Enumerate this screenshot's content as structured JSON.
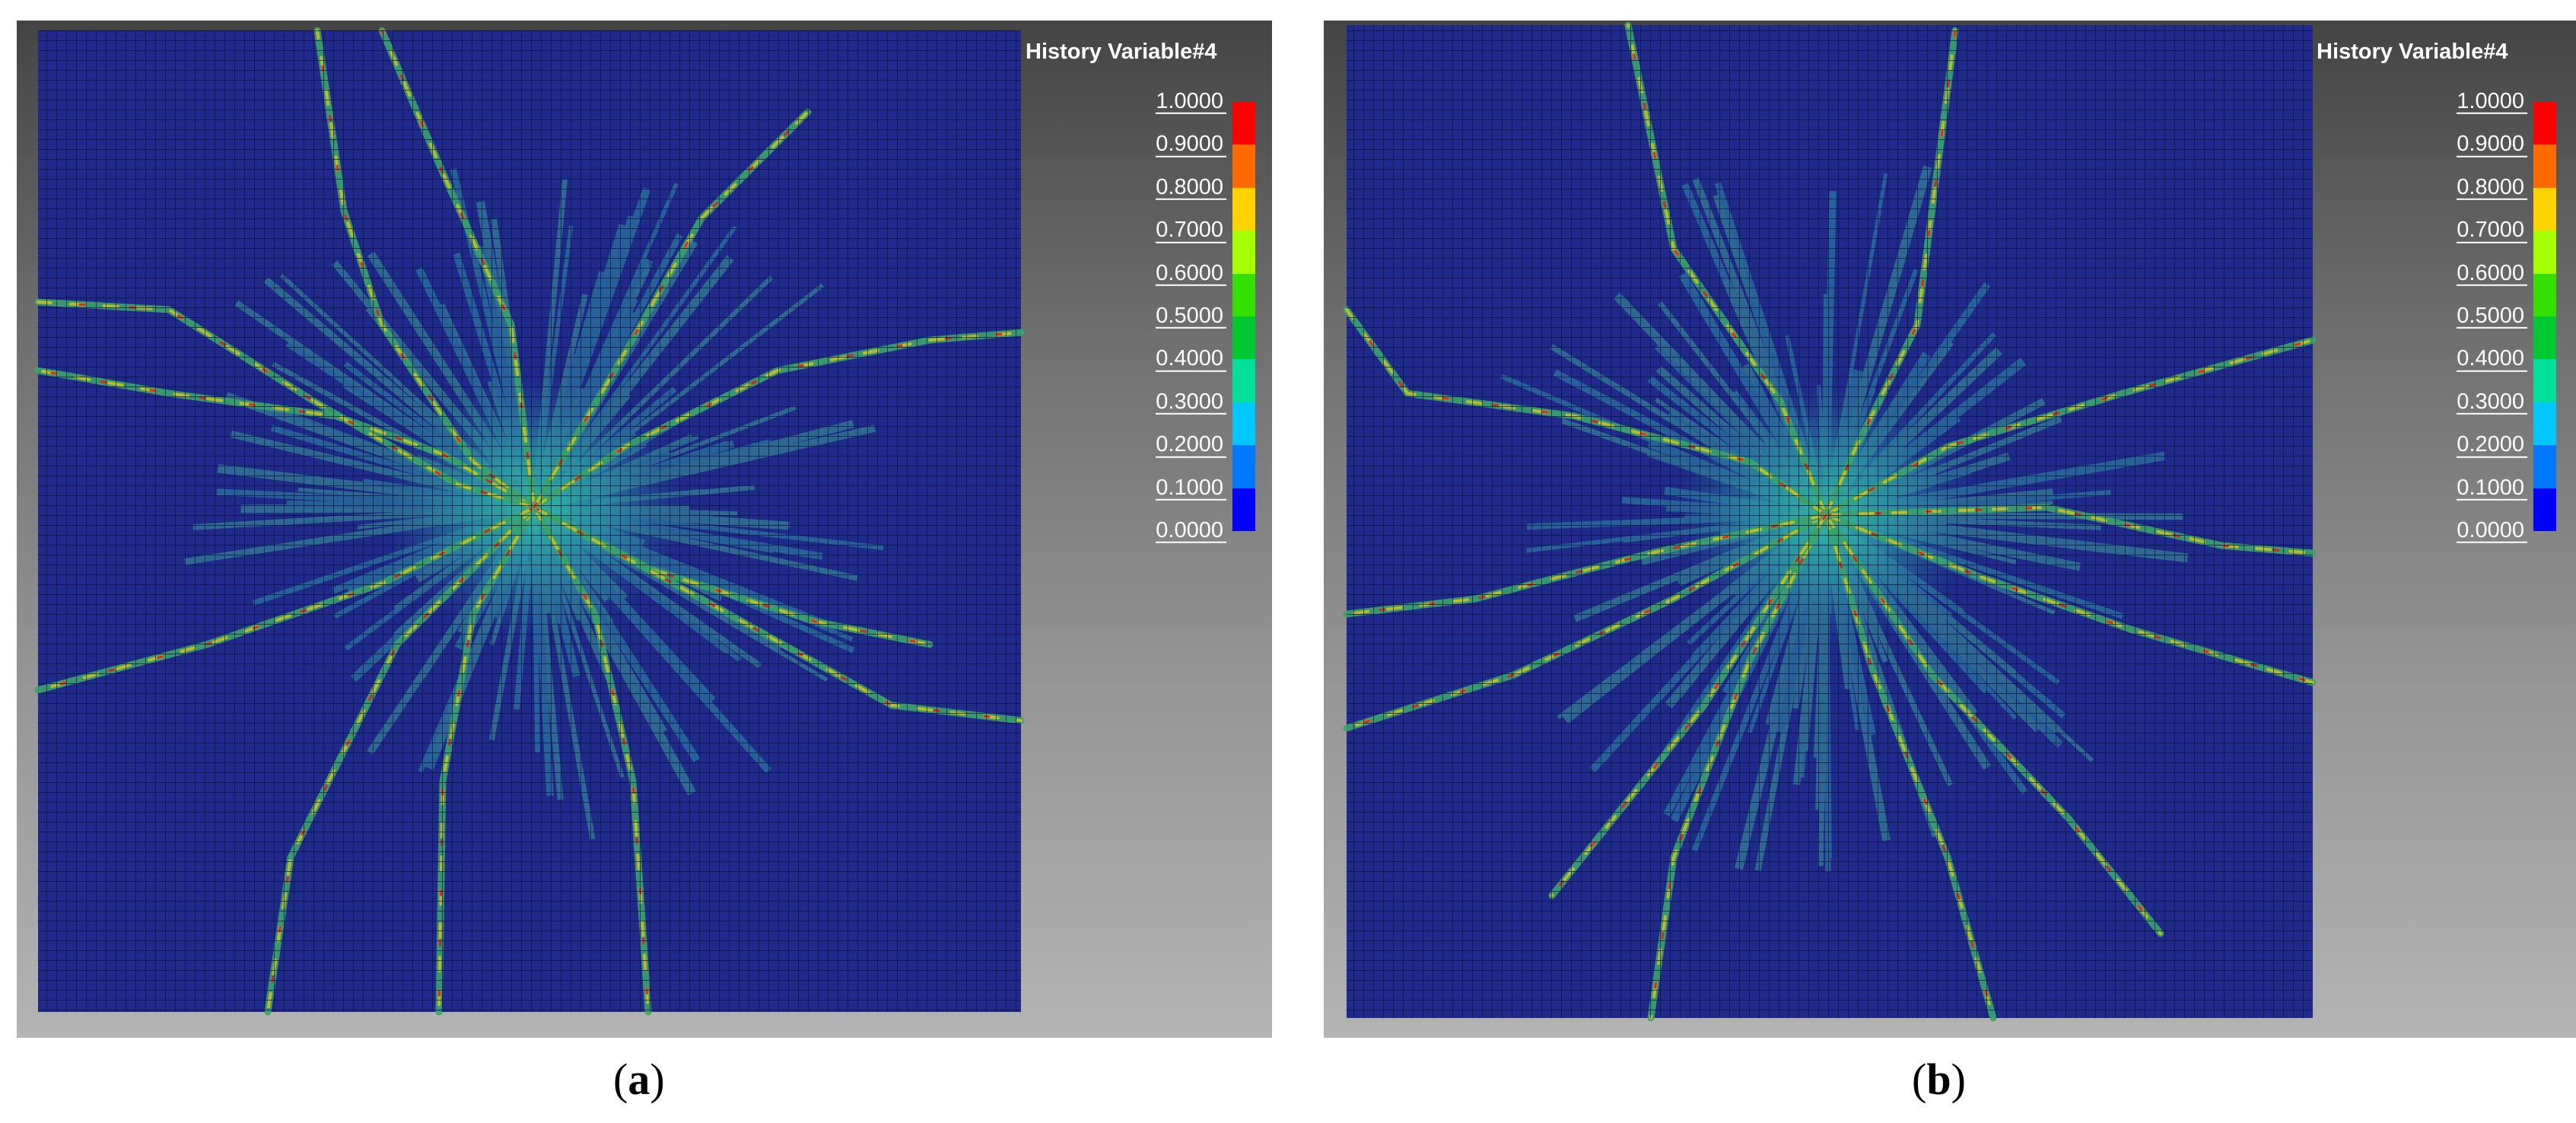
{
  "panels": [
    {
      "id": "a",
      "legend_title": "History Variable#4",
      "legend_labels": [
        "1.0000",
        "0.9000",
        "0.8000",
        "0.7000",
        "0.6000",
        "0.5000",
        "0.4000",
        "0.3000",
        "0.2000",
        "0.1000",
        "0.0000"
      ],
      "caption_letter": "a"
    },
    {
      "id": "b",
      "legend_title": "History Variable#4",
      "legend_labels": [
        "1.0000",
        "0.9000",
        "0.8000",
        "0.7000",
        "0.6000",
        "0.5000",
        "0.4000",
        "0.3000",
        "0.2000",
        "0.1000",
        "0.0000"
      ],
      "caption_letter": "b"
    }
  ],
  "legend_colors": [
    "#ff0000",
    "#ff6a00",
    "#ffd200",
    "#a6ff00",
    "#35e000",
    "#00c832",
    "#00e09a",
    "#00c8ff",
    "#0078ff",
    "#0000ff"
  ],
  "mesh_background_color": "#1f2a8a",
  "mesh_line_color": "#0c1240"
}
